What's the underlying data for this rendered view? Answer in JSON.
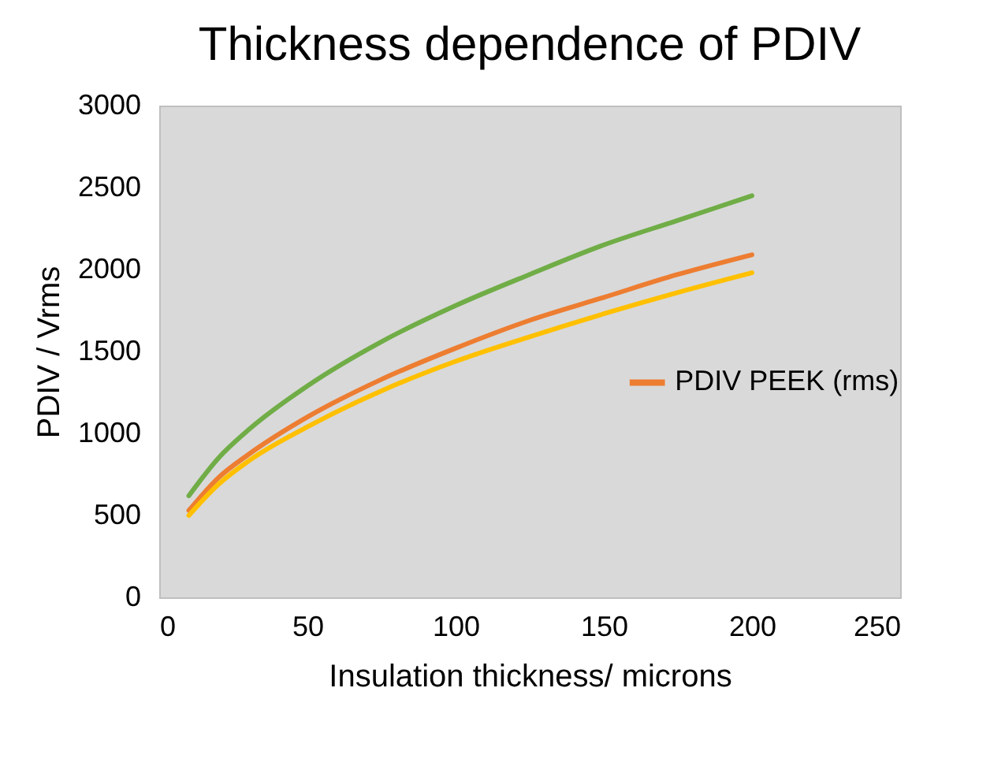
{
  "chart_data": {
    "type": "line",
    "title": "Thickness dependence of PDIV",
    "xlabel": "Insulation thickness/ microns",
    "ylabel": "PDIV / Vrms",
    "x": [
      10,
      20,
      30,
      50,
      75,
      100,
      125,
      150,
      175,
      200
    ],
    "series": [
      {
        "color": "#70ad47",
        "values": [
          620,
          850,
          1020,
          1290,
          1560,
          1780,
          1970,
          2150,
          2300,
          2450
        ]
      },
      {
        "name": "PDIV PEEK (rms)",
        "color": "#ed7d31",
        "values": [
          530,
          730,
          870,
          1100,
          1330,
          1520,
          1690,
          1830,
          1970,
          2090
        ]
      },
      {
        "color": "#ffc000",
        "values": [
          500,
          690,
          830,
          1040,
          1260,
          1440,
          1590,
          1730,
          1860,
          1980
        ]
      }
    ],
    "xlim": [
      0,
      250
    ],
    "xticks": [
      0,
      50,
      100,
      150,
      200,
      250
    ],
    "ylim": [
      0,
      3000
    ],
    "yticks": [
      0,
      500,
      1000,
      1500,
      2000,
      2500,
      3000
    ],
    "grid": false,
    "legend": "right",
    "marker": "none",
    "line_style": "solid"
  }
}
